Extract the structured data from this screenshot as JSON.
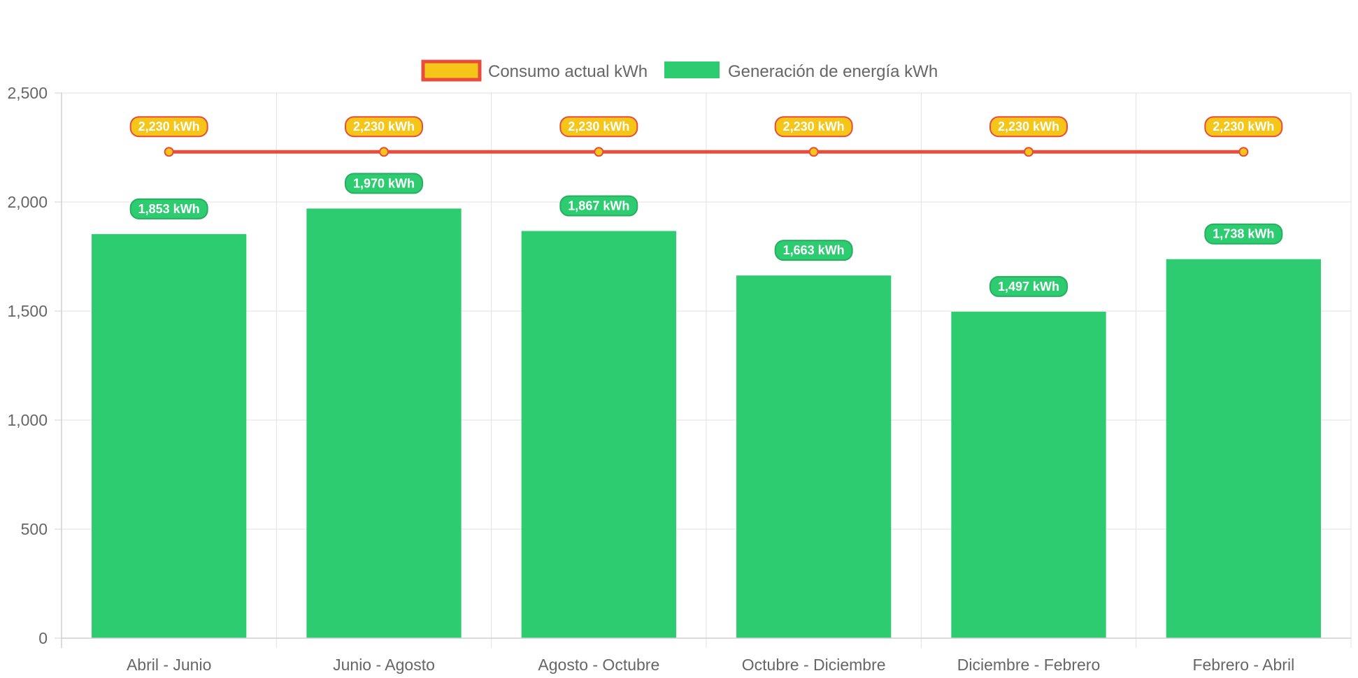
{
  "chart_data": {
    "type": "bar",
    "title": "",
    "xlabel": "",
    "ylabel": "",
    "categories": [
      "Abril - Junio",
      "Junio - Agosto",
      "Agosto - Octubre",
      "Octubre - Diciembre",
      "Diciembre - Febrero",
      "Febrero - Abril"
    ],
    "ylim": [
      0,
      2500
    ],
    "yticks": [
      0,
      500,
      1000,
      1500,
      2000,
      2500
    ],
    "ytick_labels": [
      "0",
      "500",
      "1,000",
      "1,500",
      "2,000",
      "2,500"
    ],
    "grid": true,
    "legend_position": "top-center",
    "series": [
      {
        "name": "Consumo actual kWh",
        "type": "line",
        "values": [
          2230,
          2230,
          2230,
          2230,
          2230,
          2230
        ],
        "labels": [
          "2,230 kWh",
          "2,230 kWh",
          "2,230 kWh",
          "2,230 kWh",
          "2,230 kWh",
          "2,230 kWh"
        ],
        "color": "#f5c518",
        "border_color": "#e74c3c"
      },
      {
        "name": "Generación de energía kWh",
        "type": "bar",
        "values": [
          1853,
          1970,
          1867,
          1663,
          1497,
          1738
        ],
        "labels": [
          "1,853 kWh",
          "1,970 kWh",
          "1,867 kWh",
          "1,663 kWh",
          "1,497 kWh",
          "1,738 kWh"
        ],
        "color": "#2ecc71",
        "border_color": "#27ae60"
      }
    ]
  }
}
